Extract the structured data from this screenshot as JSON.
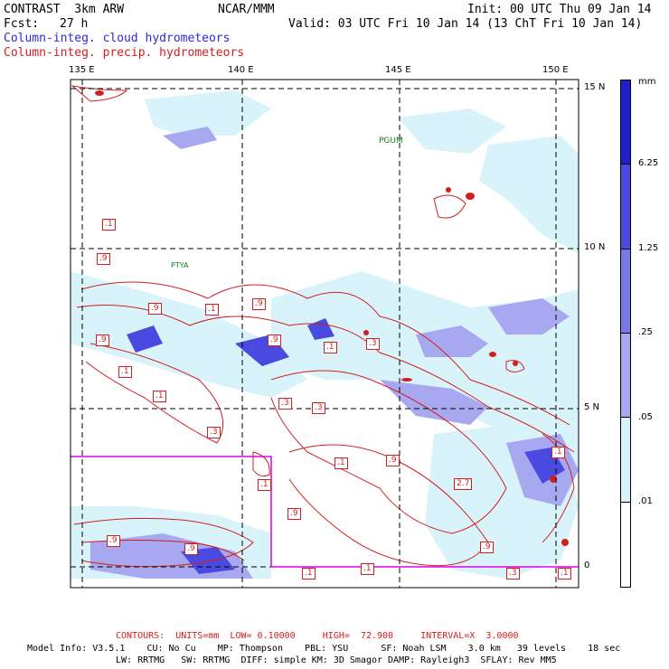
{
  "header": {
    "model": "CONTRAST  3km ARW",
    "org": "NCAR/MMM",
    "init": "Init: 00 UTC Thu 09 Jan 14",
    "fcst_label": "Fcst:",
    "fcst_value": "27 h",
    "valid": "Valid: 03 UTC Fri 10 Jan 14 (13 ChT Fri 10 Jan 14)",
    "field1": "Column-integ. cloud hydrometeors",
    "field2": "Column-integ. precip. hydrometeors"
  },
  "colors": {
    "field1": "#2b2bd6",
    "field2": "#d21e1e",
    "box": "#e000e0"
  },
  "map": {
    "lon_labels": [
      "135 E",
      "140 E",
      "145 E",
      "150 E"
    ],
    "lat_labels": [
      "15 N",
      "10 N",
      "5 N",
      "0"
    ],
    "stations": [
      "PGUM",
      "PTYA"
    ],
    "contour_labels": [
      ".1",
      ".9",
      ".9",
      ".1",
      ".9",
      ".9",
      ".9",
      ".1",
      ".1",
      ".3",
      ".3",
      ".3",
      ".1",
      ".3",
      ".1",
      ".9",
      ".1",
      ".9",
      "2.7",
      ".1",
      ".9",
      ".9",
      ".9",
      ".1",
      ".1",
      ".3",
      ".1"
    ]
  },
  "colorbar": {
    "unit": "mm",
    "levels": [
      "6.25",
      "1.25",
      ".25",
      ".05",
      ".01"
    ],
    "swatches": [
      "#2020d0",
      "#4a4ae0",
      "#7878e8",
      "#a8a8f0",
      "#d8f4fa",
      "#ffffff"
    ]
  },
  "footer": {
    "contours": "CONTOURS:  UNITS=mm  LOW= 0.10000     HIGH=  72.900     INTERVAL=X  3.0000",
    "model_info_1": "Model Info: V3.5.1    CU: No Cu    MP: Thompson    PBL: YSU      SF: Noah LSM    3.0 km   39 levels    18 sec",
    "model_info_2": "LW: RRTMG   SW: RRTMG  DIFF: simple KM: 3D Smagor DAMP: Rayleigh3  SFLAY: Rev MM5"
  }
}
